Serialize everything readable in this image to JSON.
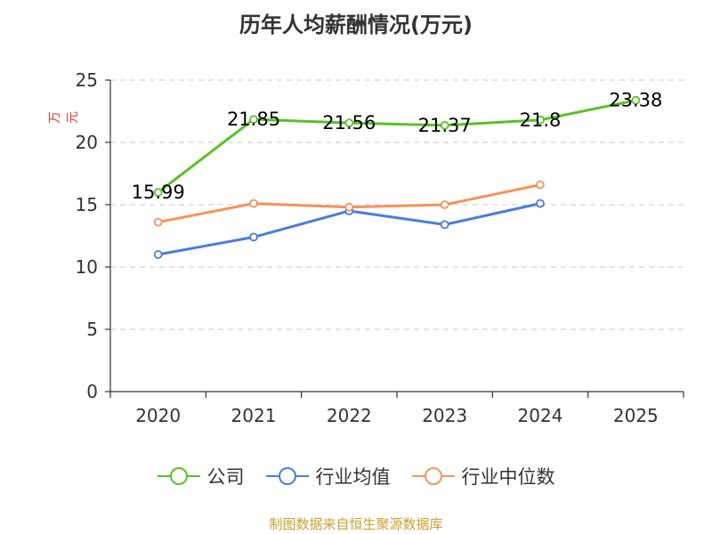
{
  "chart_data": {
    "type": "line",
    "title": "历年人均薪酬情况(万元)",
    "ylabel": "万元",
    "xlabel": "",
    "categories": [
      "2020",
      "2021",
      "2022",
      "2023",
      "2024",
      "2025"
    ],
    "ylim": [
      0,
      25
    ],
    "yticks": [
      0,
      5,
      10,
      15,
      20,
      25
    ],
    "grid": true,
    "legend_position": "bottom",
    "series": [
      {
        "name": "公司",
        "color": "#5cbf2a",
        "values": [
          15.99,
          21.85,
          21.56,
          21.37,
          21.8,
          23.38
        ],
        "labels": [
          "15.99",
          "21.85",
          "21.56",
          "21.37",
          "21.8",
          "23.38"
        ]
      },
      {
        "name": "行业均值",
        "color": "#4a7fd6",
        "values": [
          11.0,
          12.4,
          14.5,
          13.4,
          15.1,
          null
        ],
        "labels": []
      },
      {
        "name": "行业中位数",
        "color": "#f4935c",
        "values": [
          13.6,
          15.1,
          14.8,
          15.0,
          16.6,
          null
        ],
        "labels": []
      }
    ]
  },
  "footer": {
    "source": "制图数据来自恒生聚源数据库"
  }
}
